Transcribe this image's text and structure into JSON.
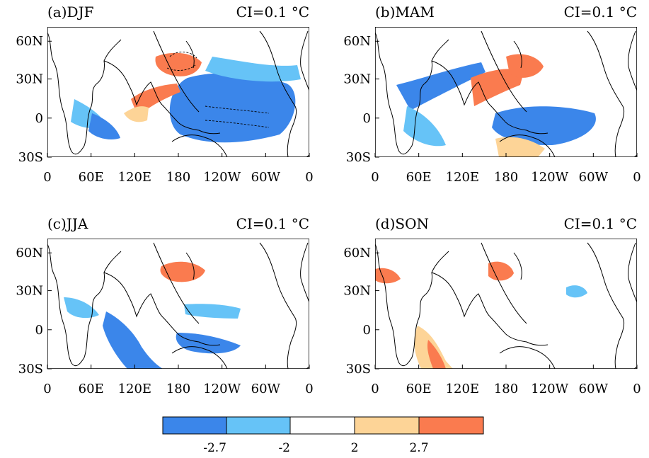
{
  "panels": [
    {
      "label": "(a)DJF",
      "ci": "CI=0.1 °C"
    },
    {
      "label": "(b)MAM",
      "ci": "CI=0.1 °C"
    },
    {
      "label": "(c)JJA",
      "ci": "CI=0.1 °C"
    },
    {
      "label": "(d)SON",
      "ci": "CI=0.1 °C"
    }
  ],
  "axes": {
    "lat_labels": [
      "60N",
      "30N",
      "0",
      "30S"
    ],
    "lon_labels": [
      "0",
      "60E",
      "120E",
      "180",
      "120W",
      "60W",
      "0"
    ]
  },
  "colorbar": {
    "colors": [
      "#3b86ea",
      "#66c3f7",
      "#ffffff",
      "#fdd497",
      "#fa7b4f"
    ],
    "tick_labels": [
      "-2.7",
      "-2",
      "2",
      "2.7"
    ]
  },
  "colors": {
    "strong_negative": "#3b86ea",
    "weak_negative": "#66c3f7",
    "weak_positive": "#fdd497",
    "strong_positive": "#fa7b4f",
    "land": "#ffffff",
    "contour": "#000000"
  }
}
